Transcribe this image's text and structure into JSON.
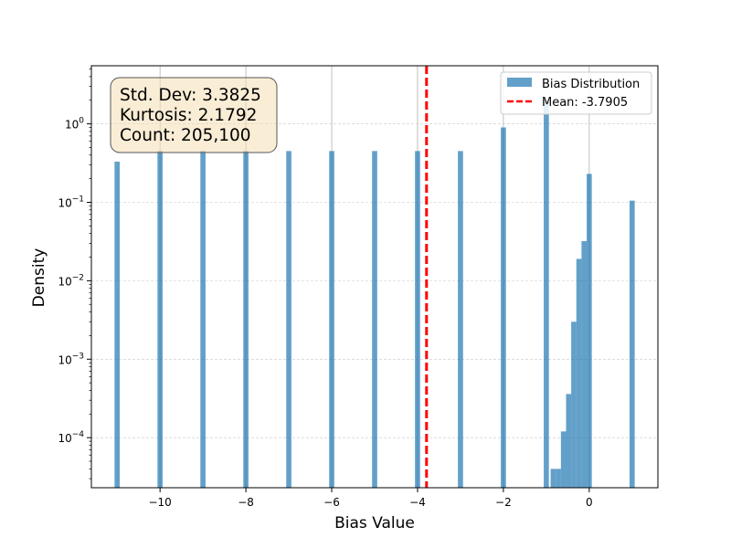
{
  "chart_data": {
    "type": "bar",
    "xlabel": "Bias Value",
    "ylabel": "Density",
    "xlim": [
      -11.6,
      1.6
    ],
    "ylim": [
      2.3e-05,
      5.5
    ],
    "y_scale": "log",
    "x_ticks": [
      -10,
      -8,
      -6,
      -4,
      -2,
      0
    ],
    "x_tick_labels": [
      "−10",
      "−8",
      "−6",
      "−4",
      "−2",
      "0"
    ],
    "y_ticks": [
      0.0001,
      0.001,
      0.01,
      0.1,
      1
    ],
    "y_tick_labels": [
      {
        "base": "10",
        "exp": "−4"
      },
      {
        "base": "10",
        "exp": "−3"
      },
      {
        "base": "10",
        "exp": "−2"
      },
      {
        "base": "10",
        "exp": "−1"
      },
      {
        "base": "10",
        "exp": "0"
      }
    ],
    "grid": true,
    "bar_color": "#1f77b4",
    "bar_alpha": 0.7,
    "bin_width": 0.12,
    "bins": [
      {
        "x": -11.0,
        "value": 0.33
      },
      {
        "x": -10.0,
        "value": 0.45
      },
      {
        "x": -9.0,
        "value": 0.45
      },
      {
        "x": -8.0,
        "value": 0.45
      },
      {
        "x": -7.0,
        "value": 0.45
      },
      {
        "x": -6.0,
        "value": 0.45
      },
      {
        "x": -5.0,
        "value": 0.45
      },
      {
        "x": -4.0,
        "value": 0.45
      },
      {
        "x": -3.0,
        "value": 0.45
      },
      {
        "x": -2.0,
        "value": 0.9
      },
      {
        "x": -1.0,
        "value": 2.0
      },
      {
        "x": -0.84,
        "value": 4e-05
      },
      {
        "x": -0.72,
        "value": 4e-05
      },
      {
        "x": -0.6,
        "value": 0.00012
      },
      {
        "x": -0.48,
        "value": 0.00036
      },
      {
        "x": -0.36,
        "value": 0.003
      },
      {
        "x": -0.24,
        "value": 0.019
      },
      {
        "x": -0.12,
        "value": 0.032
      },
      {
        "x": 0.0,
        "value": 0.23
      },
      {
        "x": 1.0,
        "value": 0.105
      }
    ],
    "mean_line": {
      "x": -3.7905,
      "color": "#ff0000"
    },
    "legend": {
      "placement": "top-right",
      "entries": [
        {
          "label": "Bias Distribution",
          "color": "#1f77b4"
        },
        {
          "label": "Mean: -3.7905",
          "color": "#ff0000"
        }
      ]
    },
    "stats_box": {
      "lines": [
        "Std. Dev: 3.3825",
        "Kurtosis: 2.1792",
        "Count: 205,100"
      ],
      "background": "#f5deb3"
    }
  }
}
